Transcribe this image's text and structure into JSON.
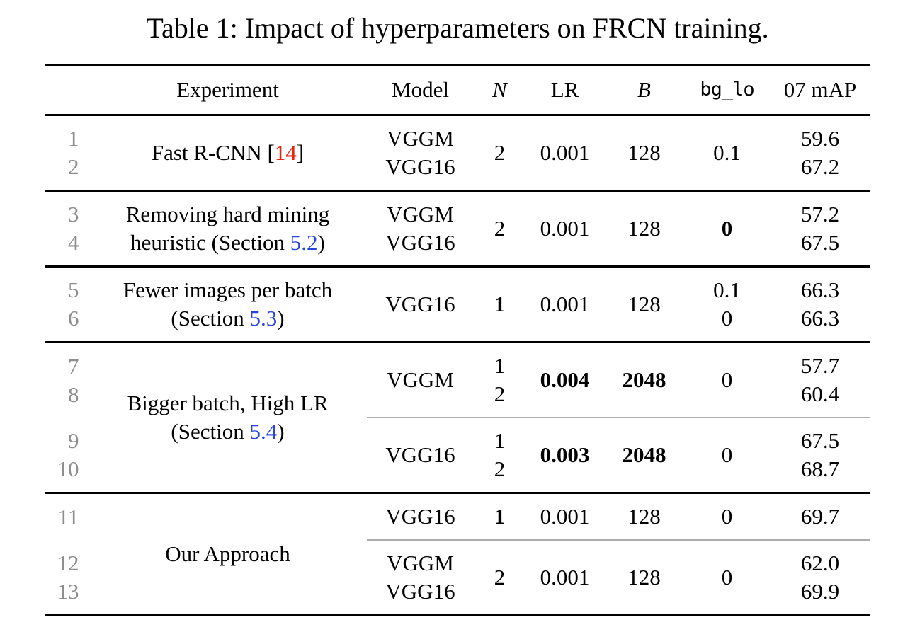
{
  "title": "Table 1: Impact of hyperparameters on FRCN training.",
  "colors": {
    "citation_link": "#e8250c",
    "section_link": "#2743e0",
    "row_number_gray": "#8e8e8e",
    "rule_black": "#000000",
    "rule_thin_gray": "#adadad"
  },
  "header": {
    "experiment": "Experiment",
    "model": "Model",
    "n": "N",
    "lr": "LR",
    "b": "B",
    "bg_lo": "bg_lo",
    "map": "07 mAP"
  },
  "groups": [
    {
      "nums": [
        "1",
        "2"
      ],
      "experiment": {
        "pre": "Fast R-CNN [",
        "cite": "14",
        "post": "]"
      },
      "model": [
        "VGGM",
        "VGG16"
      ],
      "n": "2",
      "lr": "0.001",
      "b": "128",
      "bg": "0.1",
      "map": [
        "59.6",
        "67.2"
      ]
    },
    {
      "nums": [
        "3",
        "4"
      ],
      "experiment": {
        "line1": "Removing hard mining",
        "pre": "heuristic (Section ",
        "link": "5.2",
        "post": ")"
      },
      "model": [
        "VGGM",
        "VGG16"
      ],
      "n": "2",
      "lr": "0.001",
      "b": "128",
      "bg": "0",
      "map": [
        "57.2",
        "67.5"
      ]
    },
    {
      "nums": [
        "5",
        "6"
      ],
      "experiment": {
        "line1": "Fewer images per batch",
        "pre": "(Section ",
        "link": "5.3",
        "post": ")"
      },
      "model": "VGG16",
      "n": "1",
      "lr": "0.001",
      "b": "128",
      "bg": [
        "0.1",
        "0"
      ],
      "map": [
        "66.3",
        "66.3"
      ]
    },
    {
      "experiment": {
        "line1": "Bigger batch, High LR",
        "pre": "(Section ",
        "link": "5.4",
        "post": ")"
      },
      "sub": [
        {
          "nums": [
            "7",
            "8"
          ],
          "model": "VGGM",
          "n": [
            "1",
            "2"
          ],
          "lr": "0.004",
          "b": "2048",
          "bg": "0",
          "map": [
            "57.7",
            "60.4"
          ]
        },
        {
          "nums": [
            "9",
            "10"
          ],
          "model": "VGG16",
          "n": [
            "1",
            "2"
          ],
          "lr": "0.003",
          "b": "2048",
          "bg": "0",
          "map": [
            "67.5",
            "68.7"
          ]
        }
      ]
    },
    {
      "experiment": {
        "line1": "Our Approach"
      },
      "sub": [
        {
          "nums": [
            "11"
          ],
          "model": "VGG16",
          "n": "1",
          "lr": "0.001",
          "b": "128",
          "bg": "0",
          "map": [
            "69.7"
          ]
        },
        {
          "nums": [
            "12",
            "13"
          ],
          "model": [
            "VGGM",
            "VGG16"
          ],
          "n": "2",
          "lr": "0.001",
          "b": "128",
          "bg": "0",
          "map": [
            "62.0",
            "69.9"
          ]
        }
      ]
    }
  ]
}
